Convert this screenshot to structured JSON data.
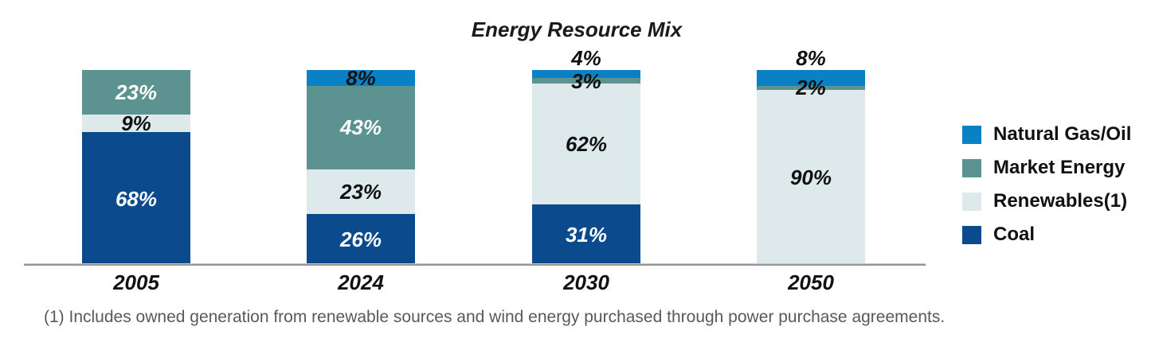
{
  "title": "Energy Resource Mix",
  "footnote": "(1) Includes owned generation from renewable sources and wind energy purchased through power purchase agreements.",
  "colors": {
    "natural_gas_oil": "#0b81c5",
    "market_energy": "#5c928f",
    "renewables": "#dde9ea",
    "coal": "#0a4a8d",
    "axis_line": "#969696",
    "footnote_text": "#595959",
    "label_dark": "#111111",
    "label_light": "#ffffff"
  },
  "legend": {
    "position": "right",
    "items": [
      {
        "label": "Natural Gas/Oil",
        "color_key": "natural_gas_oil"
      },
      {
        "label": "Market Energy",
        "color_key": "market_energy"
      },
      {
        "label": "Renewables(1)",
        "color_key": "renewables"
      },
      {
        "label": "Coal",
        "color_key": "coal"
      }
    ]
  },
  "chart_data": {
    "type": "bar",
    "stacked": true,
    "unit": "%",
    "title": "Energy Resource Mix",
    "ylim": [
      0,
      100
    ],
    "grid": false,
    "legend_position": "right",
    "categories": [
      "2005",
      "2024",
      "2030",
      "2050"
    ],
    "series": [
      {
        "name": "Natural Gas/Oil",
        "values": [
          0,
          8,
          4,
          8
        ]
      },
      {
        "name": "Market Energy",
        "values": [
          23,
          43,
          3,
          2
        ]
      },
      {
        "name": "Renewables(1)",
        "values": [
          9,
          23,
          62,
          90
        ]
      },
      {
        "name": "Coal",
        "values": [
          68,
          26,
          31,
          0
        ]
      }
    ],
    "series_color_keys": {
      "Natural Gas/Oil": "natural_gas_oil",
      "Market Energy": "market_energy",
      "Renewables(1)": "renewables",
      "Coal": "coal"
    },
    "bars": [
      {
        "category": "2005",
        "segments": [
          {
            "series": "Market Energy",
            "pct": 23,
            "label": "23%",
            "label_color": "light",
            "label_pos": "inside"
          },
          {
            "series": "Renewables(1)",
            "pct": 9,
            "label": "9%",
            "label_color": "dark",
            "label_pos": "inside"
          },
          {
            "series": "Coal",
            "pct": 68,
            "label": "68%",
            "label_color": "light",
            "label_pos": "inside"
          }
        ]
      },
      {
        "category": "2024",
        "segments": [
          {
            "series": "Natural Gas/Oil",
            "pct": 8,
            "label": "8%",
            "label_color": "dark",
            "label_pos": "inside"
          },
          {
            "series": "Market Energy",
            "pct": 43,
            "label": "43%",
            "label_color": "light",
            "label_pos": "inside"
          },
          {
            "series": "Renewables(1)",
            "pct": 23,
            "label": "23%",
            "label_color": "dark",
            "label_pos": "inside"
          },
          {
            "series": "Coal",
            "pct": 26,
            "label": "26%",
            "label_color": "light",
            "label_pos": "inside"
          }
        ]
      },
      {
        "category": "2030",
        "segments": [
          {
            "series": "Natural Gas/Oil",
            "pct": 4,
            "label": "4%",
            "label_color": "dark",
            "label_pos": "above"
          },
          {
            "series": "Market Energy",
            "pct": 3,
            "label": "3%",
            "label_color": "dark",
            "label_pos": "overlay"
          },
          {
            "series": "Renewables(1)",
            "pct": 62,
            "label": "62%",
            "label_color": "dark",
            "label_pos": "inside"
          },
          {
            "series": "Coal",
            "pct": 31,
            "label": "31%",
            "label_color": "light",
            "label_pos": "inside"
          }
        ]
      },
      {
        "category": "2050",
        "segments": [
          {
            "series": "Natural Gas/Oil",
            "pct": 8,
            "label": "8%",
            "label_color": "dark",
            "label_pos": "above"
          },
          {
            "series": "Market Energy",
            "pct": 2,
            "label": "2%",
            "label_color": "dark",
            "label_pos": "overlay"
          },
          {
            "series": "Renewables(1)",
            "pct": 90,
            "label": "90%",
            "label_color": "dark",
            "label_pos": "inside"
          }
        ]
      }
    ]
  }
}
